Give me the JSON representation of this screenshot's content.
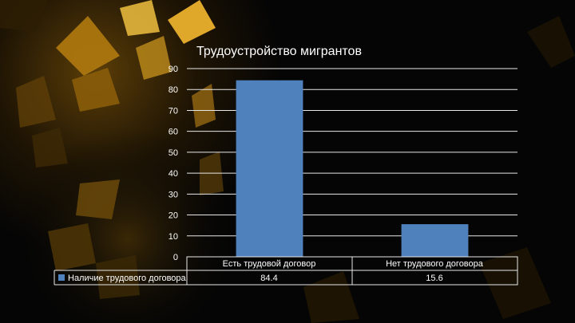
{
  "chart_data": {
    "type": "bar",
    "title": "Трудоустройство мигрантов",
    "categories": [
      "Есть трудовой договор",
      "Нет трудового договора"
    ],
    "series": [
      {
        "name": "Наличие трудового договора",
        "values": [
          84.4,
          15.6
        ],
        "value_labels": [
          "84.4",
          "15.6"
        ]
      }
    ],
    "ylim": [
      0,
      90
    ],
    "yticks": [
      0,
      10,
      20,
      30,
      40,
      50,
      60,
      70,
      80,
      90
    ],
    "grid": true,
    "data_table": true,
    "legend": "data-table-left"
  },
  "colors": {
    "bar": "#4f81bd",
    "text": "#ffffff",
    "grid": "#e8e8e8",
    "background": "#050505",
    "shard_gold": "#c8921a"
  }
}
